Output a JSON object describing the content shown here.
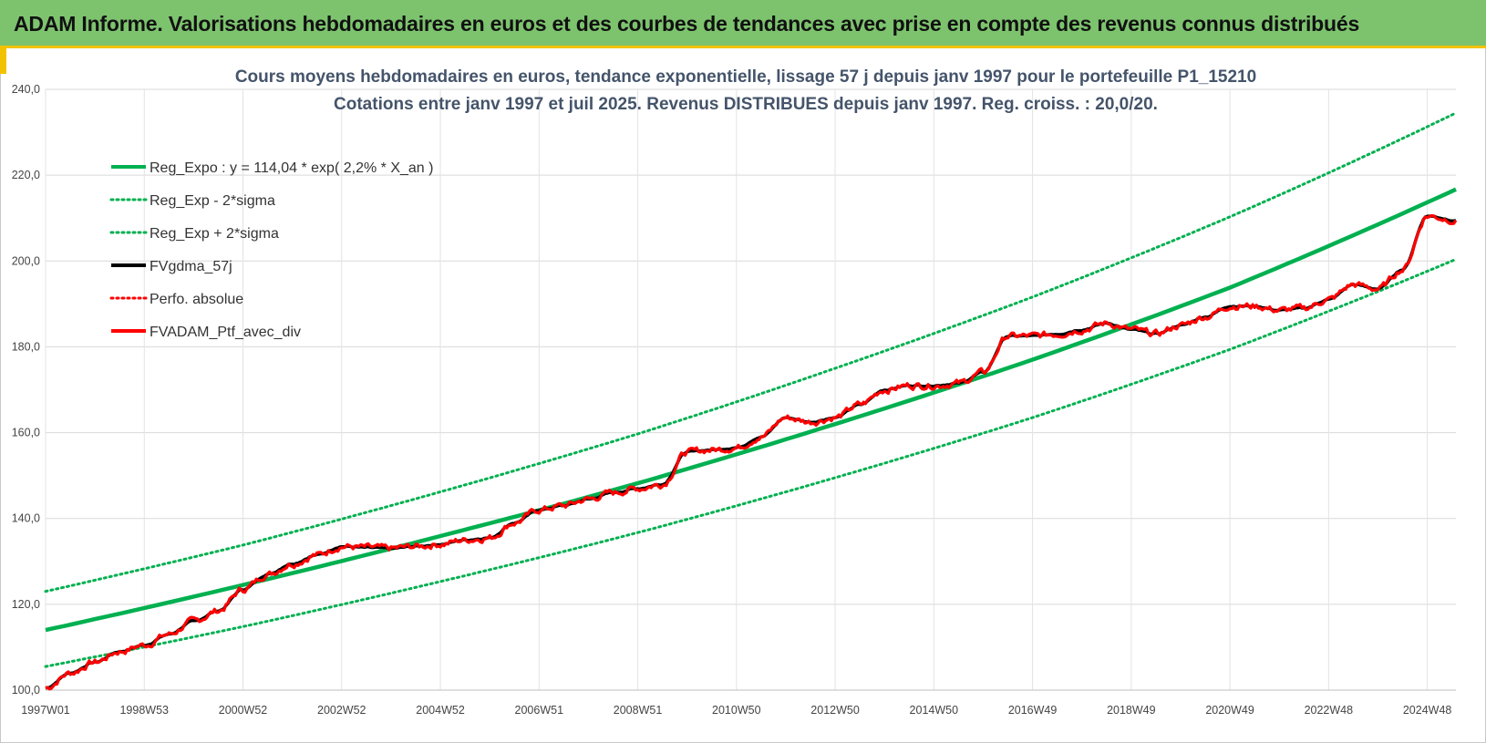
{
  "header": {
    "title": "ADAM Informe. Valorisations hebdomadaires en euros et des courbes de tendances avec prise en compte des revenus connus distribués"
  },
  "colors": {
    "banner": "#7dc36e",
    "banner_accent": "#f2c200",
    "regression": "#00b050",
    "price": "#ff0000",
    "smoothed": "#000000"
  },
  "chart_data": {
    "type": "line",
    "title_lines": [
      "Cours moyens hebdomadaires  en euros, tendance exponentielle, lissage 57 j depuis janv 1997 pour le portefeuille P1_15210",
      "Cotations entre janv 1997 et juil 2025. Revenus DISTRIBUES depuis janv 1997. Reg. croiss. : 20,0/20."
    ],
    "xlabel": "",
    "ylabel": "",
    "ylim": [
      100,
      240
    ],
    "y_ticks": [
      "100,0",
      "120,0",
      "140,0",
      "160,0",
      "180,0",
      "200,0",
      "220,0",
      "240,0"
    ],
    "x_ticks": [
      "1997W01",
      "1998W53",
      "2000W52",
      "2002W52",
      "2004W52",
      "2006W51",
      "2008W51",
      "2010W50",
      "2012W50",
      "2014W50",
      "2016W49",
      "2018W49",
      "2020W49",
      "2022W48",
      "2024W48"
    ],
    "x_tick_years": [
      1997.0,
      1999.0,
      2001.0,
      2003.0,
      2005.0,
      2007.0,
      2009.0,
      2011.0,
      2013.0,
      2015.0,
      2017.0,
      2019.0,
      2021.0,
      2023.0,
      2025.0
    ],
    "x_range_years": [
      1997.0,
      2025.58
    ],
    "grid": true,
    "legend_position": "top-left",
    "legend": [
      {
        "label": "Reg_Expo : y = 114,04 * exp( 2,2% *  X_an )",
        "color": "#00b050",
        "style": "solid"
      },
      {
        "label": "Reg_Exp - 2*sigma",
        "color": "#00b050",
        "style": "dotted"
      },
      {
        "label": "Reg_Exp + 2*sigma",
        "color": "#00b050",
        "style": "dotted"
      },
      {
        "label": "FVgdma_57j",
        "color": "#000000",
        "style": "solid"
      },
      {
        "label": "Perfo. absolue",
        "color": "#ff0000",
        "style": "dotted"
      },
      {
        "label": "FVADAM_Ptf_avec_div",
        "color": "#ff0000",
        "style": "solid"
      }
    ],
    "series": [
      {
        "name": "Reg_Expo : y = 114,04 * exp( 2,2% *  X_an )",
        "x": [
          1997.0,
          2001.0,
          2005.0,
          2009.0,
          2013.0,
          2017.0,
          2021.0,
          2025.58
        ],
        "values": [
          114.0,
          124.5,
          135.9,
          148.2,
          162.0,
          177.0,
          193.8,
          216.7
        ]
      },
      {
        "name": "Reg_Exp - 2*sigma",
        "x": [
          1997.0,
          2001.0,
          2005.0,
          2009.0,
          2013.0,
          2017.0,
          2021.0,
          2025.58
        ],
        "values": [
          105.5,
          114.8,
          125.3,
          136.7,
          149.5,
          163.5,
          179.4,
          200.4
        ]
      },
      {
        "name": "Reg_Exp + 2*sigma",
        "x": [
          1997.0,
          2001.0,
          2005.0,
          2009.0,
          2013.0,
          2017.0,
          2021.0,
          2025.58
        ],
        "values": [
          123.0,
          133.8,
          146.2,
          159.7,
          175.0,
          191.6,
          210.3,
          234.5
        ]
      },
      {
        "name": "FVADAM_Ptf_avec_div",
        "x": [
          1997.0,
          1997.5,
          1998.0,
          1998.5,
          1999.0,
          1999.5,
          2000.0,
          2000.5,
          2001.0,
          2001.5,
          2002.0,
          2002.5,
          2003.0,
          2003.5,
          2004.0,
          2004.5,
          2005.0,
          2005.5,
          2006.0,
          2006.5,
          2007.0,
          2007.5,
          2008.0,
          2008.5,
          2009.0,
          2009.5,
          2010.0,
          2010.5,
          2011.0,
          2011.5,
          2012.0,
          2012.5,
          2013.0,
          2013.5,
          2014.0,
          2014.5,
          2015.0,
          2015.5,
          2016.0,
          2016.5,
          2017.0,
          2017.5,
          2018.0,
          2018.5,
          2019.0,
          2019.5,
          2020.0,
          2020.5,
          2021.0,
          2021.5,
          2022.0,
          2022.5,
          2023.0,
          2023.5,
          2024.0,
          2024.5,
          2025.0,
          2025.58
        ],
        "values": [
          100.5,
          104.0,
          106.5,
          109.0,
          110.5,
          113.0,
          116.0,
          118.5,
          123.5,
          127.0,
          129.5,
          131.5,
          133.5,
          133.2,
          133.0,
          133.5,
          134.0,
          135.0,
          135.5,
          139.0,
          142.0,
          143.0,
          144.5,
          146.0,
          147.0,
          148.0,
          155.5,
          156.0,
          156.5,
          159.0,
          163.5,
          162.5,
          163.5,
          166.5,
          170.0,
          171.0,
          171.0,
          171.5,
          174.0,
          182.5,
          182.5,
          183.0,
          184.0,
          185.5,
          184.0,
          183.0,
          185.0,
          187.0,
          189.5,
          189.5,
          188.5,
          189.0,
          191.0,
          194.5,
          193.5,
          198.0,
          210.5,
          209.5
        ]
      }
    ]
  }
}
